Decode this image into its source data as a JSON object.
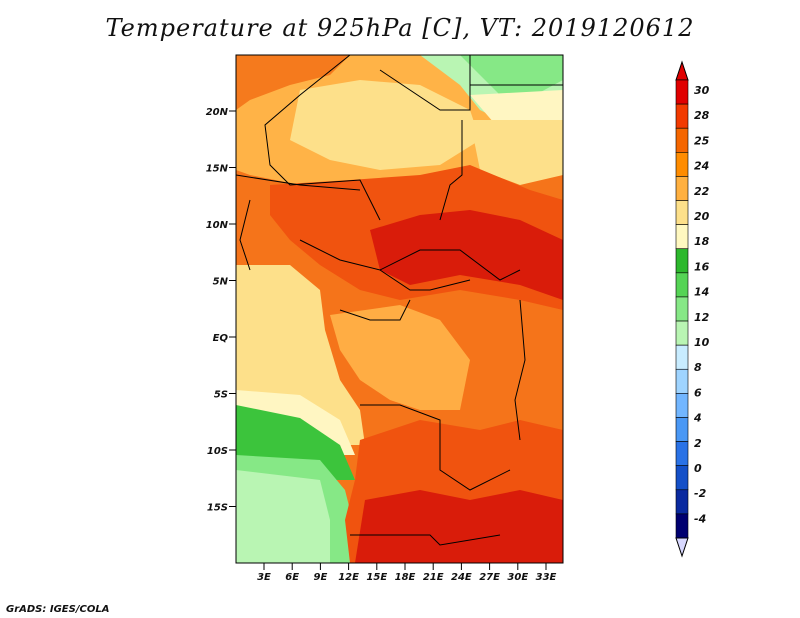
{
  "title": "Temperature at 925hPa [C], VT: 2019120612",
  "footer": "GrADS: IGES/COLA",
  "map": {
    "lat_labels": [
      "20N",
      "15N",
      "10N",
      "5N",
      "EQ",
      "5S",
      "10S",
      "15S"
    ],
    "lon_labels": [
      "3E",
      "6E",
      "9E",
      "12E",
      "15E",
      "18E",
      "21E",
      "24E",
      "27E",
      "30E",
      "33E"
    ]
  },
  "colorbar": {
    "levels": [
      "30",
      "28",
      "25",
      "24",
      "22",
      "20",
      "18",
      "16",
      "14",
      "12",
      "10",
      "8",
      "6",
      "4",
      "2",
      "0",
      "-2",
      "-4"
    ],
    "colors": [
      "#e00000",
      "#f23a00",
      "#f56600",
      "#ff8c00",
      "#ffb040",
      "#fde08a",
      "#fff8c0",
      "#2db82d",
      "#55d455",
      "#86e886",
      "#b9f5b3",
      "#c8ecff",
      "#9fd4ff",
      "#72b6ff",
      "#4a98f5",
      "#2a72e6",
      "#1450c8",
      "#0a2aa0",
      "#000070"
    ],
    "top_color": "#e00000",
    "bottom_color": "#000070"
  },
  "colors": {
    "hot": "#d91c0a",
    "warm": "#f0530f",
    "orange": "#f57a1d",
    "light_orange": "#ffad44",
    "pale": "#fde08a",
    "cream": "#fff6c2",
    "green": "#3cc43c",
    "light_green": "#86e886",
    "pale_green": "#b9f5b3"
  }
}
